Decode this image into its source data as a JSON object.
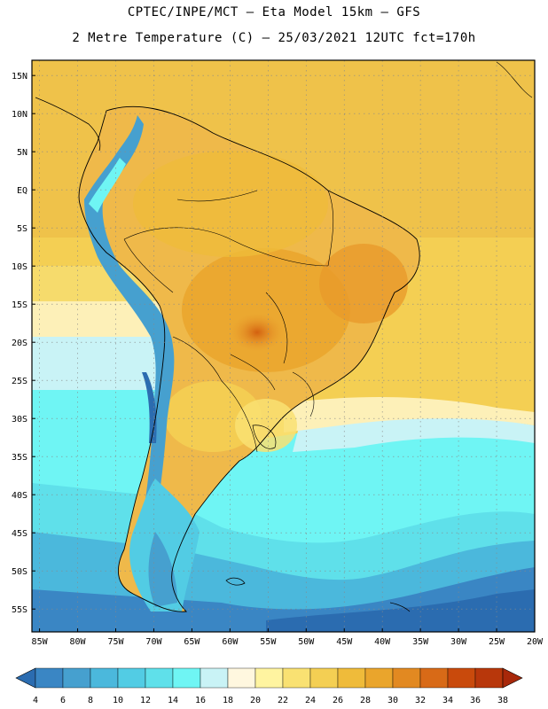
{
  "header": {
    "line1": "CPTEC/INPE/MCT –  Eta Model 15km – GFS",
    "line2": "2 Metre Temperature (C) – 25/03/2021 12UTC fct=170h"
  },
  "map": {
    "lat_labels": [
      "15N",
      "10N",
      "5N",
      "EQ",
      "5S",
      "10S",
      "15S",
      "20S",
      "25S",
      "30S",
      "35S",
      "40S",
      "45S",
      "50S",
      "55S"
    ],
    "lon_labels": [
      "85W",
      "80W",
      "75W",
      "70W",
      "65W",
      "60W",
      "55W",
      "50W",
      "45W",
      "40W",
      "35W",
      "30W",
      "25W",
      "20W"
    ],
    "lon_range": [
      -86,
      -20
    ],
    "lat_range": [
      -58,
      17
    ]
  },
  "colorbar": {
    "levels": [
      "4",
      "6",
      "8",
      "10",
      "12",
      "14",
      "16",
      "18",
      "20",
      "22",
      "24",
      "26",
      "28",
      "30",
      "32",
      "34",
      "36",
      "38"
    ],
    "colors": [
      "#2b6cb0",
      "#3a86c4",
      "#46a0cf",
      "#4bb8dc",
      "#52cce4",
      "#5fe0ea",
      "#6ff5f4",
      "#c9f3f6",
      "#fff7df",
      "#fff4a0",
      "#f9e172",
      "#f4cf53",
      "#efbb3a",
      "#eaa52c",
      "#e28921",
      "#d86a17",
      "#c94a0c",
      "#b8370b",
      "#a8280a"
    ]
  }
}
